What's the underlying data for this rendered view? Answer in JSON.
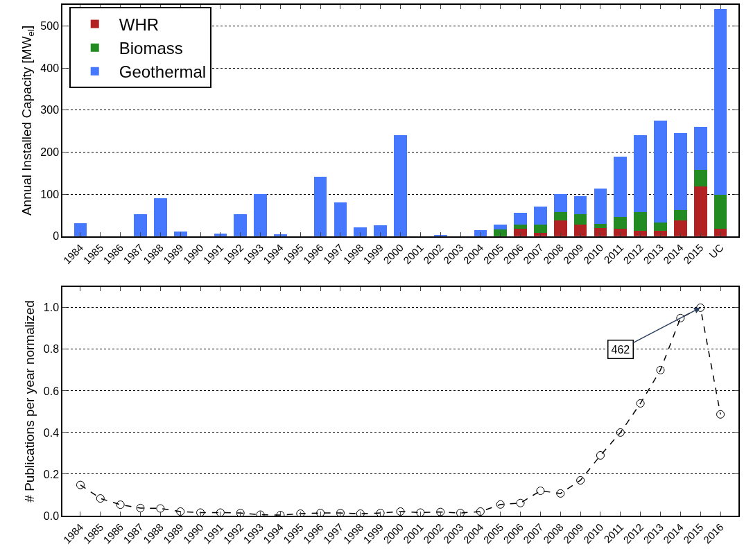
{
  "chart_data": [
    {
      "type": "bar",
      "stacked": true,
      "ylabel": "Annual Installed Capacity [MW$_{el}$]",
      "categories": [
        "1984",
        "1985",
        "1986",
        "1987",
        "1988",
        "1989",
        "1990",
        "1991",
        "1992",
        "1993",
        "1994",
        "1995",
        "1996",
        "1997",
        "1998",
        "1999",
        "2000",
        "2001",
        "2002",
        "2003",
        "2004",
        "2005",
        "2006",
        "2007",
        "2008",
        "2009",
        "2010",
        "2011",
        "2012",
        "2013",
        "2014",
        "2015",
        "UC"
      ],
      "series": [
        {
          "name": "WHR",
          "color": "#b22222",
          "values": [
            0,
            0,
            0,
            0,
            0,
            0,
            0,
            0,
            0,
            0,
            0,
            0,
            0,
            0,
            0,
            null,
            0,
            0,
            0,
            0,
            0,
            0,
            18,
            8,
            38,
            28,
            20,
            18,
            13,
            13,
            38,
            118,
            18
          ]
        },
        {
          "name": "Biomass",
          "color": "#228b22",
          "values": [
            0,
            0,
            0,
            0,
            0,
            0,
            0,
            0,
            0,
            0,
            0,
            0,
            0,
            0,
            0,
            0,
            0,
            0,
            0,
            0,
            null,
            16,
            10,
            20,
            20,
            25,
            10,
            28,
            45,
            20,
            25,
            40,
            81
          ]
        },
        {
          "name": "Geothermal",
          "color": "#4577ff",
          "values": [
            31,
            0,
            0,
            53,
            91,
            11,
            0,
            6,
            53,
            100,
            5,
            0,
            141,
            81,
            21,
            26,
            240,
            0,
            3,
            0,
            15,
            11,
            28,
            43,
            42,
            42,
            83,
            143,
            182,
            242,
            182,
            102,
            441
          ]
        }
      ],
      "ylim": [
        0,
        550
      ],
      "yticks": [
        0,
        100,
        200,
        300,
        400,
        500
      ],
      "grid": "y",
      "legend": "top left"
    },
    {
      "type": "line",
      "ylabel": "# Publications per year normalized",
      "categories": [
        "1984",
        "1985",
        "1986",
        "1987",
        "1988",
        "1989",
        "1990",
        "1991",
        "1992",
        "1993",
        "1994",
        "1995",
        "1996",
        "1997",
        "1998",
        "1999",
        "2000",
        "2001",
        "2002",
        "2003",
        "2004",
        "2005",
        "2006",
        "2007",
        "2008",
        "2009",
        "2010",
        "2011",
        "2012",
        "2013",
        "2014",
        "2015",
        "2016"
      ],
      "series": [
        {
          "color": "#000000",
          "values": [
            0.148,
            0.083,
            0.053,
            0.037,
            0.035,
            0.02,
            0.015,
            0.015,
            0.013,
            0.005,
            0.003,
            0.01,
            0.013,
            0.013,
            0.01,
            0.013,
            0.02,
            0.015,
            0.018,
            0.013,
            0.02,
            0.054,
            0.061,
            0.12,
            0.107,
            0.17,
            0.29,
            0.4,
            0.54,
            0.7,
            0.95,
            1.0,
            0.487
          ]
        }
      ],
      "marker": "circle",
      "line_style": "dashed",
      "ylim": [
        0,
        1.1
      ],
      "yticks": [
        {
          "value": 0,
          "label": "0.0"
        },
        {
          "value": 0.2,
          "label": "0.2"
        },
        {
          "value": 0.4,
          "label": "0.4"
        },
        {
          "value": 0.6,
          "label": "0.6"
        },
        {
          "value": 0.8,
          "label": "0.8"
        },
        {
          "value": 1.0,
          "label": "1.0"
        }
      ],
      "grid": "y",
      "annotations": [
        {
          "text": "462",
          "x": "2015",
          "y": 1.0
        }
      ]
    }
  ]
}
